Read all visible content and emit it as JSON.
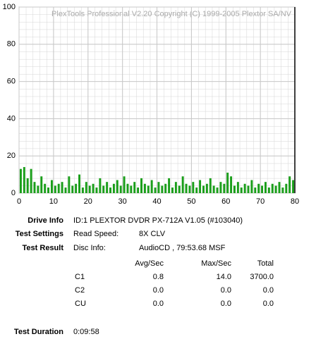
{
  "chart_data": {
    "type": "bar",
    "title": "PlexTools Professional V2.20 Copyright (C) 1999-2005 Plextor SA/NV",
    "x": [
      0,
      1,
      2,
      3,
      4,
      5,
      6,
      7,
      8,
      9,
      10,
      11,
      12,
      13,
      14,
      15,
      16,
      17,
      18,
      19,
      20,
      21,
      22,
      23,
      24,
      25,
      26,
      27,
      28,
      29,
      30,
      31,
      32,
      33,
      34,
      35,
      36,
      37,
      38,
      39,
      40,
      41,
      42,
      43,
      44,
      45,
      46,
      47,
      48,
      49,
      50,
      51,
      52,
      53,
      54,
      55,
      56,
      57,
      58,
      59,
      60,
      61,
      62,
      63,
      64,
      65,
      66,
      67,
      68,
      69,
      70,
      71,
      72,
      73,
      74,
      75,
      76,
      77,
      78,
      79
    ],
    "series": [
      {
        "name": "C1",
        "color": "#1a9e1a",
        "values": [
          13,
          14,
          8,
          13,
          6,
          4,
          9,
          5,
          3,
          7,
          4,
          5,
          6,
          3,
          9,
          4,
          5,
          10,
          3,
          6,
          4,
          5,
          3,
          8,
          4,
          6,
          3,
          5,
          7,
          4,
          9,
          5,
          4,
          6,
          3,
          8,
          5,
          4,
          7,
          3,
          6,
          4,
          5,
          8,
          3,
          6,
          4,
          9,
          5,
          4,
          6,
          3,
          7,
          4,
          5,
          8,
          4,
          3,
          6,
          5,
          11,
          9,
          4,
          6,
          3,
          5,
          4,
          7,
          3,
          5,
          4,
          6,
          3,
          5,
          4,
          6,
          3,
          5,
          9,
          7
        ]
      }
    ],
    "xlim": [
      0,
      80
    ],
    "xticks": [
      0,
      10,
      20,
      30,
      40,
      50,
      60,
      70,
      80
    ],
    "ylim": [
      0,
      100
    ],
    "yticks": [
      0,
      20,
      40,
      60,
      80,
      100
    ],
    "vline": 80,
    "grid": true
  },
  "info": {
    "drive_info": {
      "label": "Drive Info",
      "value": "ID:1 PLEXTOR DVDR PX-712A V1.05 (#103040)"
    },
    "test_settings": {
      "label": "Test Settings",
      "key": "Read Speed:",
      "value": "8X CLV"
    },
    "test_result": {
      "label": "Test Result",
      "key": "Disc Info:",
      "value": "AudioCD , 79:53.68 MSF"
    },
    "table": {
      "headers": [
        "Avg/Sec",
        "Max/Sec",
        "Total"
      ],
      "rows": [
        [
          "C1",
          "0.8",
          "14.0",
          "3700.0"
        ],
        [
          "C2",
          "0.0",
          "0.0",
          "0.0"
        ],
        [
          "CU",
          "0.0",
          "0.0",
          "0.0"
        ]
      ]
    },
    "test_duration": {
      "label": "Test Duration",
      "value": "0:09:58"
    }
  }
}
